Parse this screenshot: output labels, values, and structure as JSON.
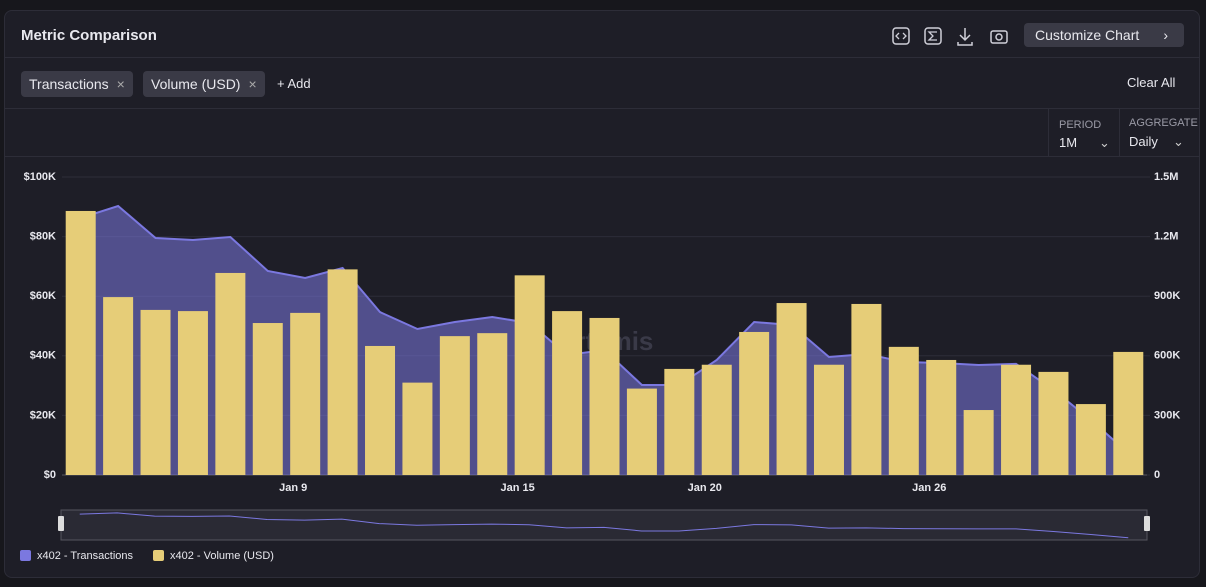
{
  "header": {
    "title": "Metric Comparison",
    "button": "Customize Chart"
  },
  "filters": {
    "chips": [
      "Transactions",
      "Volume (USD)"
    ],
    "add": "+ Add",
    "clear": "Clear All"
  },
  "controls": {
    "period_label": "PERIOD",
    "period": "1M",
    "aggregate_label": "AGGREGATE",
    "aggregate": "Daily"
  },
  "watermark": "Artemis",
  "chart_data": {
    "type": "combo",
    "categories": [
      null,
      null,
      null,
      null,
      null,
      null,
      "Jan 9",
      null,
      null,
      null,
      null,
      null,
      "Jan 15",
      null,
      null,
      null,
      null,
      "Jan 20",
      null,
      null,
      null,
      null,
      null,
      "Jan 26",
      null,
      null,
      null,
      null,
      null
    ],
    "series": [
      {
        "name": "x402 - Transactions",
        "type": "area",
        "axis": "y2",
        "color": "#7b78e0",
        "values": [
          1294000,
          1354000,
          1193000,
          1183000,
          1198000,
          1027000,
          992000,
          1042000,
          820000,
          735000,
          770000,
          795000,
          765000,
          604000,
          629000,
          453000,
          453000,
          579000,
          770000,
          755000,
          594000,
          609000,
          569000,
          564000,
          554000,
          559000,
          428000,
          277000,
          111000
        ]
      },
      {
        "name": "x402 - Volume (USD)",
        "type": "bar",
        "axis": "y",
        "color": "#e6cd78",
        "values": [
          88600,
          59700,
          55400,
          55000,
          67800,
          51000,
          54400,
          69000,
          43300,
          31000,
          46600,
          47600,
          67000,
          55000,
          52700,
          29000,
          35600,
          37000,
          48000,
          57700,
          37000,
          57400,
          43000,
          38600,
          21800,
          37000,
          34600,
          23800,
          41300
        ]
      }
    ],
    "ylim": [
      0,
      100000
    ],
    "yticks": [
      {
        "value": 0,
        "label": "$0"
      },
      {
        "value": 20000,
        "label": "$20K"
      },
      {
        "value": 40000,
        "label": "$40K"
      },
      {
        "value": 60000,
        "label": "$60K"
      },
      {
        "value": 80000,
        "label": "$80K"
      },
      {
        "value": 100000,
        "label": "$100K"
      }
    ],
    "y2lim": [
      0,
      1500000
    ],
    "y2ticks": [
      0,
      {
        "value": 300000,
        "label": "300K"
      },
      {
        "value": 600000,
        "label": "600K"
      },
      {
        "value": 900000,
        "label": "900K"
      },
      {
        "value": 1200000,
        "label": "1.2M"
      },
      {
        "value": 1500000,
        "label": "1.5M"
      }
    ],
    "grid": true
  }
}
